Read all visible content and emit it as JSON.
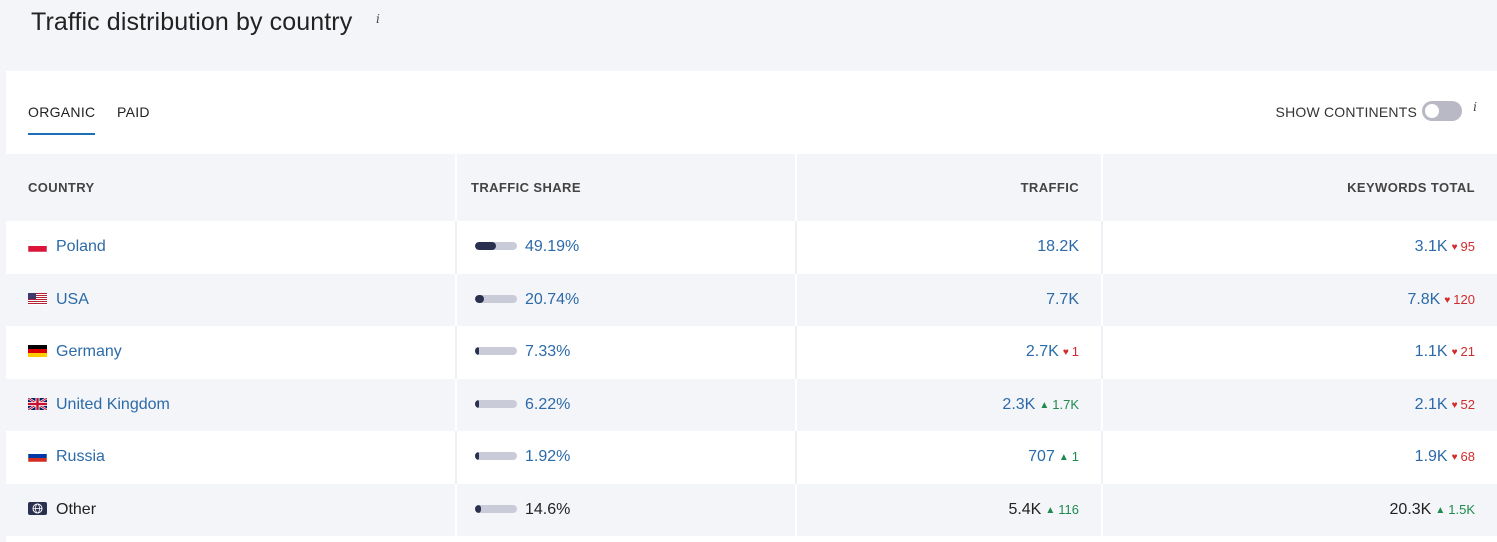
{
  "header": {
    "title": "Traffic distribution by country",
    "info": "i"
  },
  "tabs": [
    {
      "label": "ORGANIC",
      "active": true
    },
    {
      "label": "PAID",
      "active": false
    }
  ],
  "toggle": {
    "label": "SHOW CONTINENTS",
    "on": false,
    "info": "i"
  },
  "table": {
    "columns": [
      "COUNTRY",
      "TRAFFIC SHARE",
      "TRAFFIC",
      "KEYWORDS TOTAL"
    ],
    "rows": [
      {
        "country": "Poland",
        "flag": "poland-flag-icon",
        "share": "49.19%",
        "share_fraction": 0.4919,
        "traffic": "18.2K",
        "traffic_delta": "",
        "traffic_dir": "",
        "keywords": "3.1K",
        "keywords_delta": "95",
        "keywords_dir": "down"
      },
      {
        "country": "USA",
        "flag": "usa-flag-icon",
        "share": "20.74%",
        "share_fraction": 0.2074,
        "traffic": "7.7K",
        "traffic_delta": "",
        "traffic_dir": "",
        "keywords": "7.8K",
        "keywords_delta": "120",
        "keywords_dir": "down"
      },
      {
        "country": "Germany",
        "flag": "germany-flag-icon",
        "share": "7.33%",
        "share_fraction": 0.0733,
        "traffic": "2.7K",
        "traffic_delta": "1",
        "traffic_dir": "down",
        "keywords": "1.1K",
        "keywords_delta": "21",
        "keywords_dir": "down"
      },
      {
        "country": "United Kingdom",
        "flag": "uk-flag-icon",
        "share": "6.22%",
        "share_fraction": 0.0622,
        "traffic": "2.3K",
        "traffic_delta": "1.7K",
        "traffic_dir": "up",
        "keywords": "2.1K",
        "keywords_delta": "52",
        "keywords_dir": "down"
      },
      {
        "country": "Russia",
        "flag": "russia-flag-icon",
        "share": "1.92%",
        "share_fraction": 0.0192,
        "traffic": "707",
        "traffic_delta": "1",
        "traffic_dir": "up",
        "keywords": "1.9K",
        "keywords_delta": "68",
        "keywords_dir": "down"
      },
      {
        "country": "Other",
        "flag": "globe-icon",
        "share": "14.6%",
        "share_fraction": 0.146,
        "traffic": "5.4K",
        "traffic_delta": "116",
        "traffic_dir": "up",
        "keywords": "20.3K",
        "keywords_delta": "1.5K",
        "keywords_dir": "up"
      }
    ]
  },
  "colors": {
    "link": "#2c6aa8",
    "bar_fill": "#2a3150",
    "bar_track": "#c9cbd8",
    "up": "#1e8a4e",
    "down": "#d02c2c",
    "tab_underline": "#1a6fb8"
  }
}
